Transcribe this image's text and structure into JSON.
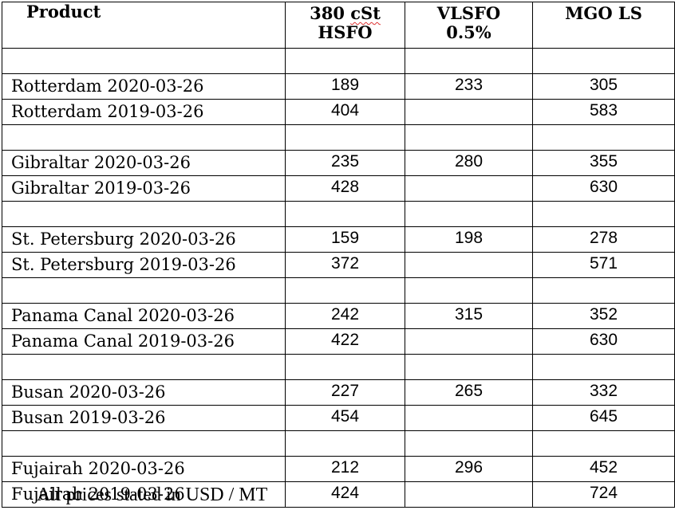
{
  "headers": {
    "product": "Product",
    "col1_line1_a": "380 ",
    "col1_line1_b": "cSt",
    "col1_line2": "HSFO",
    "col2_line1": "VLSFO",
    "col2_line2": "0.5%",
    "col3": "MGO LS"
  },
  "rows": [
    {
      "name": "",
      "hsfo": "",
      "vlsfo": "",
      "mgo": ""
    },
    {
      "name": "Rotterdam 2020-03-26",
      "hsfo": "189",
      "vlsfo": "233",
      "mgo": "305"
    },
    {
      "name": "Rotterdam 2019-03-26",
      "hsfo": "404",
      "vlsfo": "",
      "mgo": "583"
    },
    {
      "name": "",
      "hsfo": "",
      "vlsfo": "",
      "mgo": ""
    },
    {
      "name": "Gibraltar 2020-03-26",
      "hsfo": "235",
      "vlsfo": "280",
      "mgo": "355"
    },
    {
      "name": "Gibraltar 2019-03-26",
      "hsfo": "428",
      "vlsfo": "",
      "mgo": "630"
    },
    {
      "name": "",
      "hsfo": "",
      "vlsfo": "",
      "mgo": ""
    },
    {
      "name": "St. Petersburg 2020-03-26",
      "hsfo": "159",
      "vlsfo": "198",
      "mgo": "278"
    },
    {
      "name": "St. Petersburg 2019-03-26",
      "hsfo": "372",
      "vlsfo": "",
      "mgo": "571"
    },
    {
      "name": "",
      "hsfo": "",
      "vlsfo": "",
      "mgo": ""
    },
    {
      "name": "Panama Canal 2020-03-26",
      "hsfo": "242",
      "vlsfo": "315",
      "mgo": "352"
    },
    {
      "name": "Panama Canal 2019-03-26",
      "hsfo": "422",
      "vlsfo": "",
      "mgo": "630"
    },
    {
      "name": "",
      "hsfo": "",
      "vlsfo": "",
      "mgo": ""
    },
    {
      "name": "Busan 2020-03-26",
      "hsfo": "227",
      "vlsfo": "265",
      "mgo": "332"
    },
    {
      "name": "Busan 2019-03-26",
      "hsfo": "454",
      "vlsfo": "",
      "mgo": "645"
    },
    {
      "name": "",
      "hsfo": "",
      "vlsfo": "",
      "mgo": ""
    },
    {
      "name": "Fujairah 2020-03-26",
      "hsfo": "212",
      "vlsfo": "296",
      "mgo": "452"
    },
    {
      "name": "Fujairah 2019-03-26",
      "hsfo": "424",
      "vlsfo": "",
      "mgo": "724"
    }
  ],
  "footnote": "All prices stated in USD / MT"
}
